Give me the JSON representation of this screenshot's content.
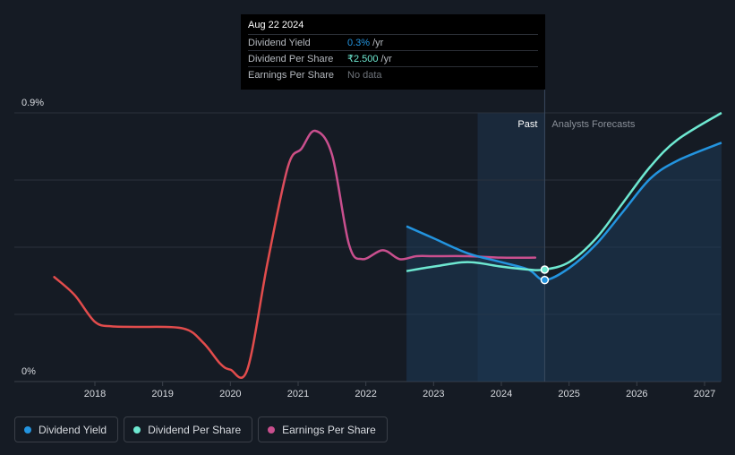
{
  "colors": {
    "background": "#151b24",
    "dividend_yield": "#2394df",
    "dividend_per_share": "#6ee8d1",
    "earnings_per_share": "#c94f8e",
    "eps_negative": "#e24c4c",
    "grid": "#2a313c",
    "forecast_shade": "#1a2a3d"
  },
  "tooltip": {
    "date": "Aug 22 2024",
    "rows": [
      {
        "label": "Dividend Yield",
        "value": "0.3%",
        "unit": "/yr",
        "color": "#2394df"
      },
      {
        "label": "Dividend Per Share",
        "value": "₹2.500",
        "unit": "/yr",
        "color": "#6ee8d1"
      },
      {
        "label": "Earnings Per Share",
        "value": "No data",
        "unit": "",
        "color": "#6e737a"
      }
    ]
  },
  "annotations": {
    "past": "Past",
    "forecast": "Analysts Forecasts"
  },
  "legend": [
    {
      "label": "Dividend Yield",
      "color": "#2394df"
    },
    {
      "label": "Dividend Per Share",
      "color": "#6ee8d1"
    },
    {
      "label": "Earnings Per Share",
      "color": "#c94f8e"
    }
  ],
  "chart_data": {
    "type": "line",
    "title": "",
    "xlabel": "",
    "ylabel": "",
    "x_ticks": [
      "2018",
      "2019",
      "2020",
      "2021",
      "2022",
      "2023",
      "2024",
      "2025",
      "2026",
      "2027"
    ],
    "y_tick_labels": [
      "0.9%",
      "0%"
    ],
    "ylim": [
      0,
      0.9
    ],
    "xlim": [
      2017.2,
      2027.25
    ],
    "past_shade_start": 2023.65,
    "forecast_start": 2024.64,
    "series": [
      {
        "name": "Earnings Per Share",
        "color": "#c94f8e",
        "negative_color": "#e24c4c",
        "color_switch_year": 2020.85,
        "points": [
          [
            2017.4,
            0.35
          ],
          [
            2017.7,
            0.29
          ],
          [
            2018.0,
            0.2
          ],
          [
            2018.25,
            0.185
          ],
          [
            2018.6,
            0.183
          ],
          [
            2019.3,
            0.178
          ],
          [
            2019.6,
            0.13
          ],
          [
            2019.85,
            0.06
          ],
          [
            2020.0,
            0.04
          ],
          [
            2020.25,
            0.04
          ],
          [
            2020.55,
            0.4
          ],
          [
            2020.85,
            0.72
          ],
          [
            2021.05,
            0.78
          ],
          [
            2021.25,
            0.84
          ],
          [
            2021.5,
            0.76
          ],
          [
            2021.75,
            0.46
          ],
          [
            2021.95,
            0.41
          ],
          [
            2022.25,
            0.44
          ],
          [
            2022.5,
            0.41
          ],
          [
            2022.75,
            0.42
          ],
          [
            2023.0,
            0.42
          ],
          [
            2023.5,
            0.42
          ],
          [
            2024.0,
            0.415
          ],
          [
            2024.5,
            0.415
          ]
        ]
      },
      {
        "name": "Dividend Yield",
        "color": "#2394df",
        "points": [
          [
            2022.6,
            0.52
          ],
          [
            2023.0,
            0.48
          ],
          [
            2023.5,
            0.43
          ],
          [
            2024.0,
            0.4
          ],
          [
            2024.4,
            0.375
          ],
          [
            2024.64,
            0.34
          ],
          [
            2025.0,
            0.38
          ],
          [
            2025.4,
            0.46
          ],
          [
            2025.8,
            0.57
          ],
          [
            2026.2,
            0.68
          ],
          [
            2026.6,
            0.74
          ],
          [
            2027.25,
            0.8
          ]
        ]
      },
      {
        "name": "Dividend Per Share",
        "color": "#6ee8d1",
        "points": [
          [
            2022.6,
            0.37
          ],
          [
            2023.0,
            0.385
          ],
          [
            2023.5,
            0.4
          ],
          [
            2024.0,
            0.385
          ],
          [
            2024.4,
            0.375
          ],
          [
            2024.64,
            0.375
          ],
          [
            2025.0,
            0.4
          ],
          [
            2025.4,
            0.48
          ],
          [
            2025.8,
            0.6
          ],
          [
            2026.2,
            0.72
          ],
          [
            2026.6,
            0.81
          ],
          [
            2027.25,
            0.9
          ]
        ]
      }
    ],
    "highlight_points": [
      {
        "series": "Dividend Yield",
        "x": 2024.64,
        "y": 0.34
      },
      {
        "series": "Dividend Per Share",
        "x": 2024.64,
        "y": 0.375
      }
    ]
  }
}
